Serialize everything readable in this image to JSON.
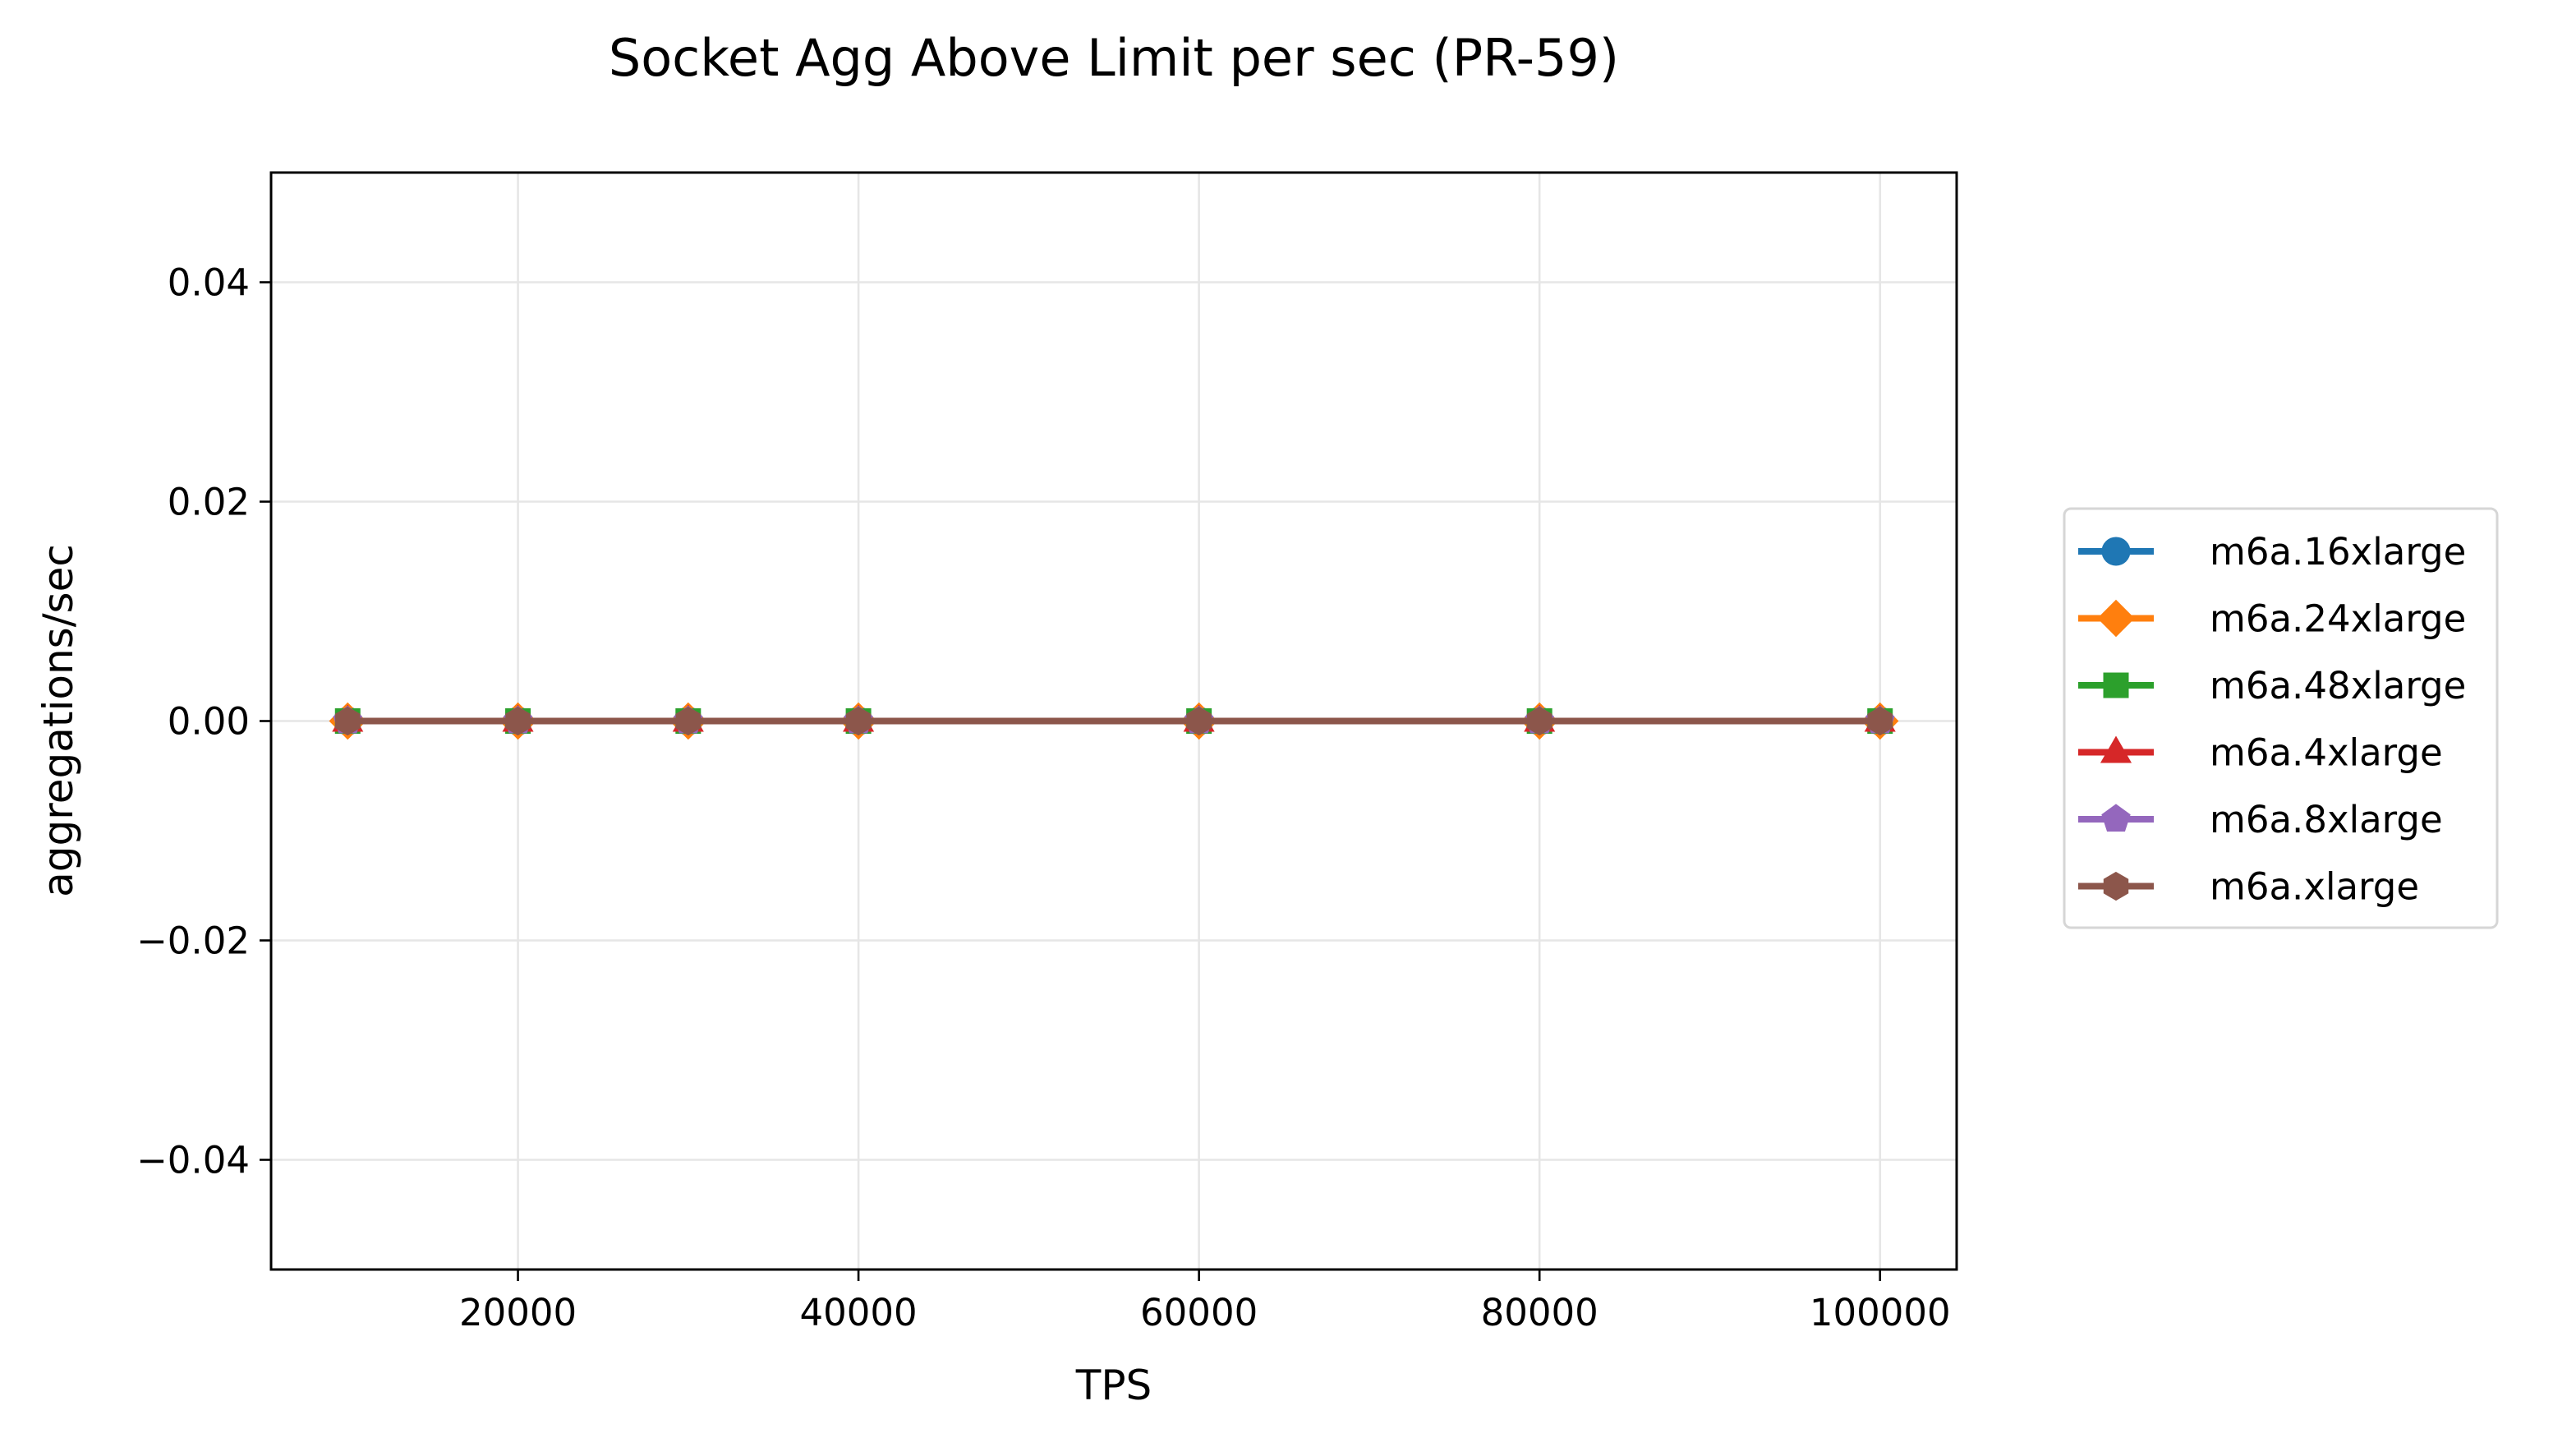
{
  "chart_data": {
    "type": "line",
    "title": "Socket Agg Above Limit per sec (PR-59)",
    "xlabel": "TPS",
    "ylabel": "aggregations/sec",
    "xlim": [
      5500,
      104500
    ],
    "ylim": [
      -0.05,
      0.05
    ],
    "x_ticks": [
      20000,
      40000,
      60000,
      80000,
      100000
    ],
    "x_tick_labels": [
      "20000",
      "40000",
      "60000",
      "80000",
      "100000"
    ],
    "y_ticks": [
      0.04,
      0.02,
      0.0,
      -0.02,
      -0.04
    ],
    "y_tick_labels": [
      "0.04",
      "0.02",
      "0.00",
      "−0.02",
      "−0.04"
    ],
    "grid": true,
    "legend_position": "right-outside",
    "x": [
      10000,
      20000,
      30000,
      40000,
      60000,
      80000,
      100000
    ],
    "series": [
      {
        "name": "m6a.16xlarge",
        "color": "#1f77b4",
        "marker": "circle",
        "values": [
          0,
          0,
          0,
          0,
          0,
          0,
          0
        ]
      },
      {
        "name": "m6a.24xlarge",
        "color": "#ff7f0e",
        "marker": "diamond",
        "values": [
          0,
          0,
          0,
          0,
          0,
          0,
          0
        ]
      },
      {
        "name": "m6a.48xlarge",
        "color": "#2ca02c",
        "marker": "square",
        "values": [
          0,
          0,
          0,
          0,
          0,
          0,
          0
        ]
      },
      {
        "name": "m6a.4xlarge",
        "color": "#d62728",
        "marker": "triangle",
        "values": [
          0,
          0,
          0,
          0,
          0,
          0,
          0
        ]
      },
      {
        "name": "m6a.8xlarge",
        "color": "#9467bd",
        "marker": "pentagon",
        "values": [
          0,
          0,
          0,
          0,
          0,
          0,
          0
        ]
      },
      {
        "name": "m6a.xlarge",
        "color": "#8c564b",
        "marker": "hexagon",
        "values": [
          0,
          0,
          0,
          0,
          0,
          0,
          0
        ]
      }
    ]
  }
}
